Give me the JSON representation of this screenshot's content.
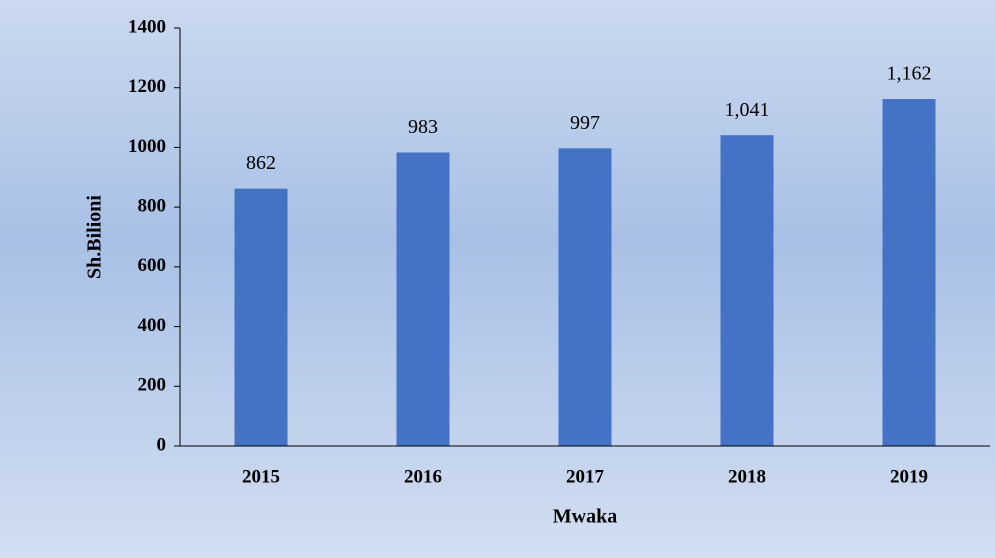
{
  "chart_data": {
    "type": "bar",
    "categories": [
      "2015",
      "2016",
      "2017",
      "2018",
      "2019"
    ],
    "values": [
      862,
      983,
      997,
      1041,
      1162
    ],
    "value_labels": [
      "862",
      "983",
      "997",
      "1,041",
      "1,162"
    ],
    "color": "#4472c4",
    "xlabel": "Mwaka",
    "ylabel": "Sh.Bilioni",
    "ylim": [
      0,
      1400
    ],
    "yticks": [
      0,
      200,
      400,
      600,
      800,
      1000,
      1200,
      1400
    ],
    "grid": false
  }
}
